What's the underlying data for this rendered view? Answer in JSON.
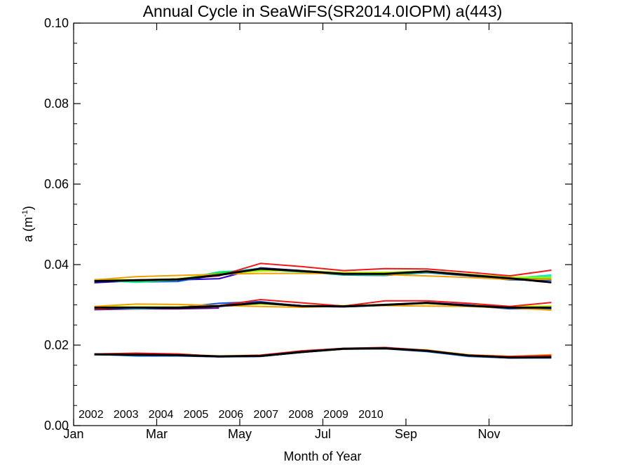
{
  "chart_data": {
    "type": "line",
    "title": "Annual Cycle in SeaWiFS(SR2014.0IOPM) a(443)",
    "xlabel": "Month of Year",
    "ylabel": "a (m",
    "ylabel_sup": "-1",
    "ylabel_tail": ")",
    "xlim": [
      1,
      13
    ],
    "ylim": [
      0.0,
      0.1
    ],
    "x_ticks": [
      {
        "value": 1,
        "label": "Jan"
      },
      {
        "value": 3,
        "label": "Mar"
      },
      {
        "value": 5,
        "label": "May"
      },
      {
        "value": 7,
        "label": "Jul"
      },
      {
        "value": 9,
        "label": "Sep"
      },
      {
        "value": 11,
        "label": "Nov"
      }
    ],
    "y_ticks": [
      {
        "value": 0.0,
        "label": "0.00"
      },
      {
        "value": 0.02,
        "label": "0.02"
      },
      {
        "value": 0.04,
        "label": "0.04"
      },
      {
        "value": 0.06,
        "label": "0.06"
      },
      {
        "value": 0.08,
        "label": "0.08"
      },
      {
        "value": 0.1,
        "label": "0.10"
      }
    ],
    "x": [
      1.5,
      2.5,
      3.5,
      4.5,
      5.5,
      6.5,
      7.5,
      8.5,
      9.5,
      10.5,
      11.5,
      12.5
    ],
    "legend_position": "bottom-left",
    "groups": [
      "upper",
      "middle",
      "lower"
    ],
    "series": [
      {
        "name": "2002",
        "color": "#5a0a6e",
        "upper": [
          null,
          null,
          null,
          null,
          null,
          null,
          null,
          null,
          null,
          null,
          null,
          null
        ],
        "middle": [
          0.0288,
          0.029,
          0.029,
          0.0292,
          null,
          null,
          null,
          null,
          null,
          null,
          null,
          null
        ],
        "lower": [
          null,
          null,
          null,
          null,
          null,
          null,
          null,
          null,
          null,
          null,
          null,
          null
        ]
      },
      {
        "name": "2003",
        "color": "#2a00d4",
        "upper": [
          0.0355,
          0.036,
          0.0362,
          0.0365,
          0.0392,
          0.0385,
          0.0378,
          0.0378,
          0.0383,
          0.0375,
          0.0367,
          0.0362
        ],
        "middle": [
          0.0292,
          0.0292,
          0.0292,
          0.0296,
          0.0306,
          0.0298,
          0.0296,
          0.0299,
          0.0306,
          0.03,
          0.0292,
          0.029
        ],
        "lower": [
          0.0177,
          0.0176,
          0.0174,
          0.0171,
          0.0172,
          0.0182,
          0.0191,
          0.0192,
          0.0185,
          0.0173,
          0.0168,
          0.017
        ]
      },
      {
        "name": "2004",
        "color": "#0a55e6",
        "upper": [
          0.036,
          0.0357,
          0.0358,
          0.0375,
          0.039,
          0.0382,
          0.0374,
          0.0373,
          0.038,
          0.0372,
          0.0362,
          0.0362
        ],
        "middle": [
          0.0292,
          0.029,
          0.0293,
          0.0304,
          0.0308,
          0.0297,
          0.0295,
          0.0299,
          0.0304,
          0.0298,
          0.029,
          0.029
        ],
        "lower": [
          0.0177,
          0.0173,
          0.0173,
          0.0171,
          0.0172,
          0.0182,
          0.019,
          0.0191,
          0.0184,
          0.0172,
          0.0168,
          0.0168
        ]
      },
      {
        "name": "2005",
        "color": "#00e8e8",
        "upper": [
          0.036,
          0.0358,
          0.0362,
          0.038,
          0.0391,
          0.0384,
          0.0376,
          0.0375,
          0.0383,
          0.0374,
          0.0366,
          0.0374
        ],
        "middle": [
          0.0294,
          0.0291,
          0.0293,
          0.0298,
          0.0306,
          0.0298,
          0.0297,
          0.0301,
          0.0305,
          0.0299,
          0.0294,
          0.0294
        ],
        "lower": [
          0.0176,
          0.0175,
          0.0174,
          0.0172,
          0.0173,
          0.0183,
          0.0191,
          0.0192,
          0.0185,
          0.0173,
          0.0169,
          0.017
        ]
      },
      {
        "name": "2006",
        "color": "#00f07a",
        "upper": [
          0.0362,
          0.0356,
          0.0362,
          0.0382,
          0.0386,
          0.0382,
          0.0375,
          0.0374,
          0.0381,
          0.0374,
          0.0368,
          0.037
        ],
        "middle": [
          0.0295,
          0.0292,
          0.0293,
          0.0297,
          0.0304,
          0.0297,
          0.0297,
          0.0301,
          0.0304,
          0.0298,
          0.0295,
          0.0296
        ],
        "lower": [
          0.0177,
          0.0176,
          0.0175,
          0.0172,
          0.0173,
          0.0183,
          0.0191,
          0.0192,
          0.0186,
          0.0174,
          0.017,
          0.0171
        ]
      },
      {
        "name": "2007",
        "color": "#22d41a",
        "upper": [
          0.0362,
          0.036,
          0.0363,
          0.0378,
          0.0388,
          0.0383,
          0.0376,
          0.0376,
          0.0382,
          0.0373,
          0.0366,
          0.0366
        ],
        "middle": [
          0.0295,
          0.0293,
          0.0293,
          0.0297,
          0.0303,
          0.0297,
          0.0297,
          0.03,
          0.0304,
          0.0298,
          0.0294,
          0.0296
        ],
        "lower": [
          0.0178,
          0.0177,
          0.0175,
          0.0172,
          0.0174,
          0.0184,
          0.0192,
          0.0193,
          0.0186,
          0.0174,
          0.017,
          0.0172
        ]
      },
      {
        "name": "2008",
        "color": "#b8f000",
        "upper": [
          0.0363,
          0.0362,
          0.0365,
          0.0376,
          0.0384,
          0.0385,
          0.038,
          0.0381,
          0.0384,
          0.0376,
          0.0369,
          0.0368
        ],
        "middle": [
          0.0296,
          0.0295,
          0.0295,
          0.0298,
          0.0302,
          0.0298,
          0.0298,
          0.0301,
          0.0303,
          0.0299,
          0.0296,
          0.0297
        ],
        "lower": [
          0.0178,
          0.0177,
          0.0176,
          0.0173,
          0.0175,
          0.0185,
          0.0191,
          0.0193,
          0.0187,
          0.0175,
          0.0172,
          0.0175
        ]
      },
      {
        "name": "2009",
        "color": "#f0a000",
        "upper": [
          0.0362,
          0.037,
          0.0373,
          0.0376,
          0.0378,
          0.0378,
          0.0378,
          0.0375,
          0.0372,
          0.0368,
          0.0363,
          0.0364
        ],
        "middle": [
          0.0296,
          0.0302,
          0.0301,
          0.0298,
          0.0296,
          0.0294,
          0.0297,
          0.0298,
          0.0297,
          0.0296,
          0.0292,
          0.0287
        ],
        "lower": [
          0.0178,
          0.0179,
          0.0177,
          0.0173,
          0.0175,
          0.0183,
          0.019,
          0.0193,
          0.0188,
          0.0176,
          0.0172,
          0.0176
        ]
      },
      {
        "name": "2010",
        "color": "#f01818",
        "upper": [
          0.0358,
          0.0362,
          0.0364,
          0.0372,
          0.0403,
          0.0395,
          0.0385,
          0.039,
          0.0389,
          0.0381,
          0.0372,
          0.0386
        ],
        "middle": [
          0.029,
          0.0294,
          0.0294,
          0.0298,
          0.0313,
          0.0305,
          0.0297,
          0.031,
          0.031,
          0.0304,
          0.0296,
          0.0306
        ],
        "lower": [
          0.0178,
          0.018,
          0.0178,
          0.0172,
          0.0175,
          0.0186,
          0.0192,
          0.0194,
          0.0187,
          0.0175,
          0.0172,
          0.0174
        ]
      }
    ],
    "mean": {
      "color": "#000000",
      "upper": [
        0.0359,
        0.0361,
        0.0363,
        0.0374,
        0.039,
        0.0384,
        0.0377,
        0.0377,
        0.0383,
        0.0374,
        0.0366,
        0.0356
      ],
      "middle": [
        0.0293,
        0.0293,
        0.0293,
        0.0297,
        0.0305,
        0.0297,
        0.0296,
        0.03,
        0.0305,
        0.0298,
        0.0293,
        0.0293
      ],
      "lower": [
        0.0177,
        0.0176,
        0.0175,
        0.0172,
        0.0173,
        0.0183,
        0.0191,
        0.0192,
        0.0186,
        0.0174,
        0.0169,
        0.017
      ]
    }
  }
}
